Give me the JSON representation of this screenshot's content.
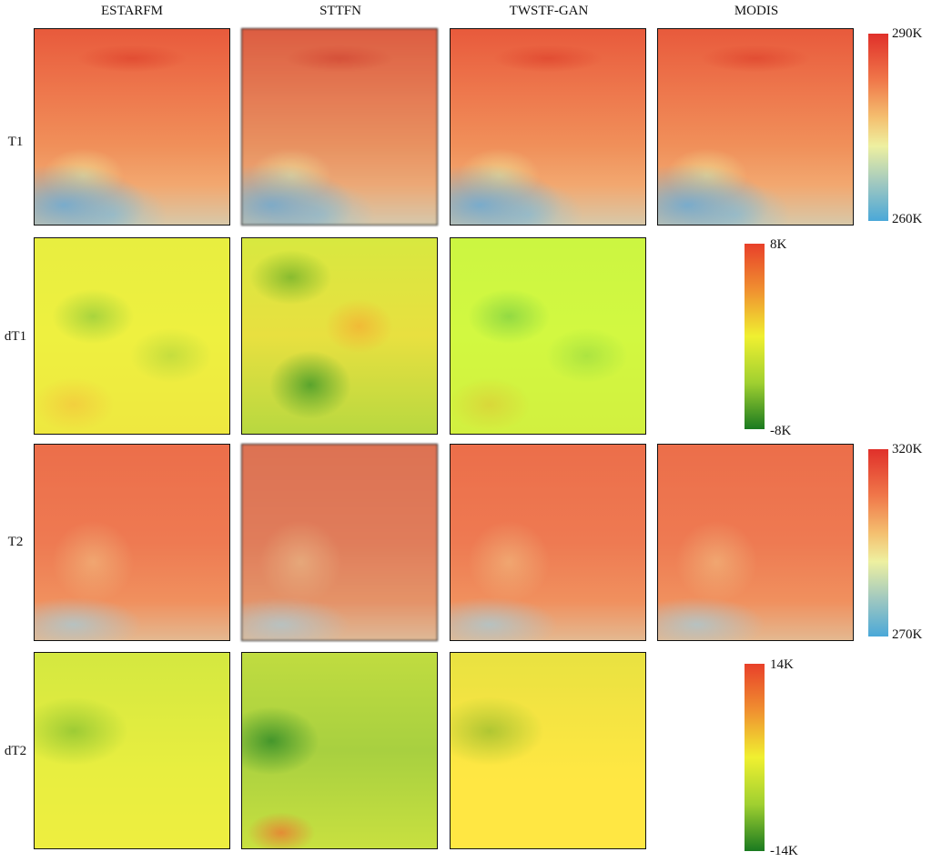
{
  "columns": [
    "ESTARFM",
    "STTFN",
    "TWSTF-GAN",
    "MODIS"
  ],
  "rows": [
    "T1",
    "dT1",
    "T2",
    "dT2"
  ],
  "colorbars": {
    "T1": {
      "max": "290K",
      "min": "260K"
    },
    "dT1": {
      "max": "8K",
      "min": "-8K"
    },
    "T2": {
      "max": "320K",
      "min": "270K"
    },
    "dT2": {
      "max": "14K",
      "min": "-14K"
    }
  },
  "colors": {
    "temperature_scale": [
      "#e0302a",
      "#f0784a",
      "#eef0a0",
      "#4aa8d8"
    ],
    "difference_scale": [
      "#e8402a",
      "#f0f030",
      "#1a7a20"
    ]
  }
}
